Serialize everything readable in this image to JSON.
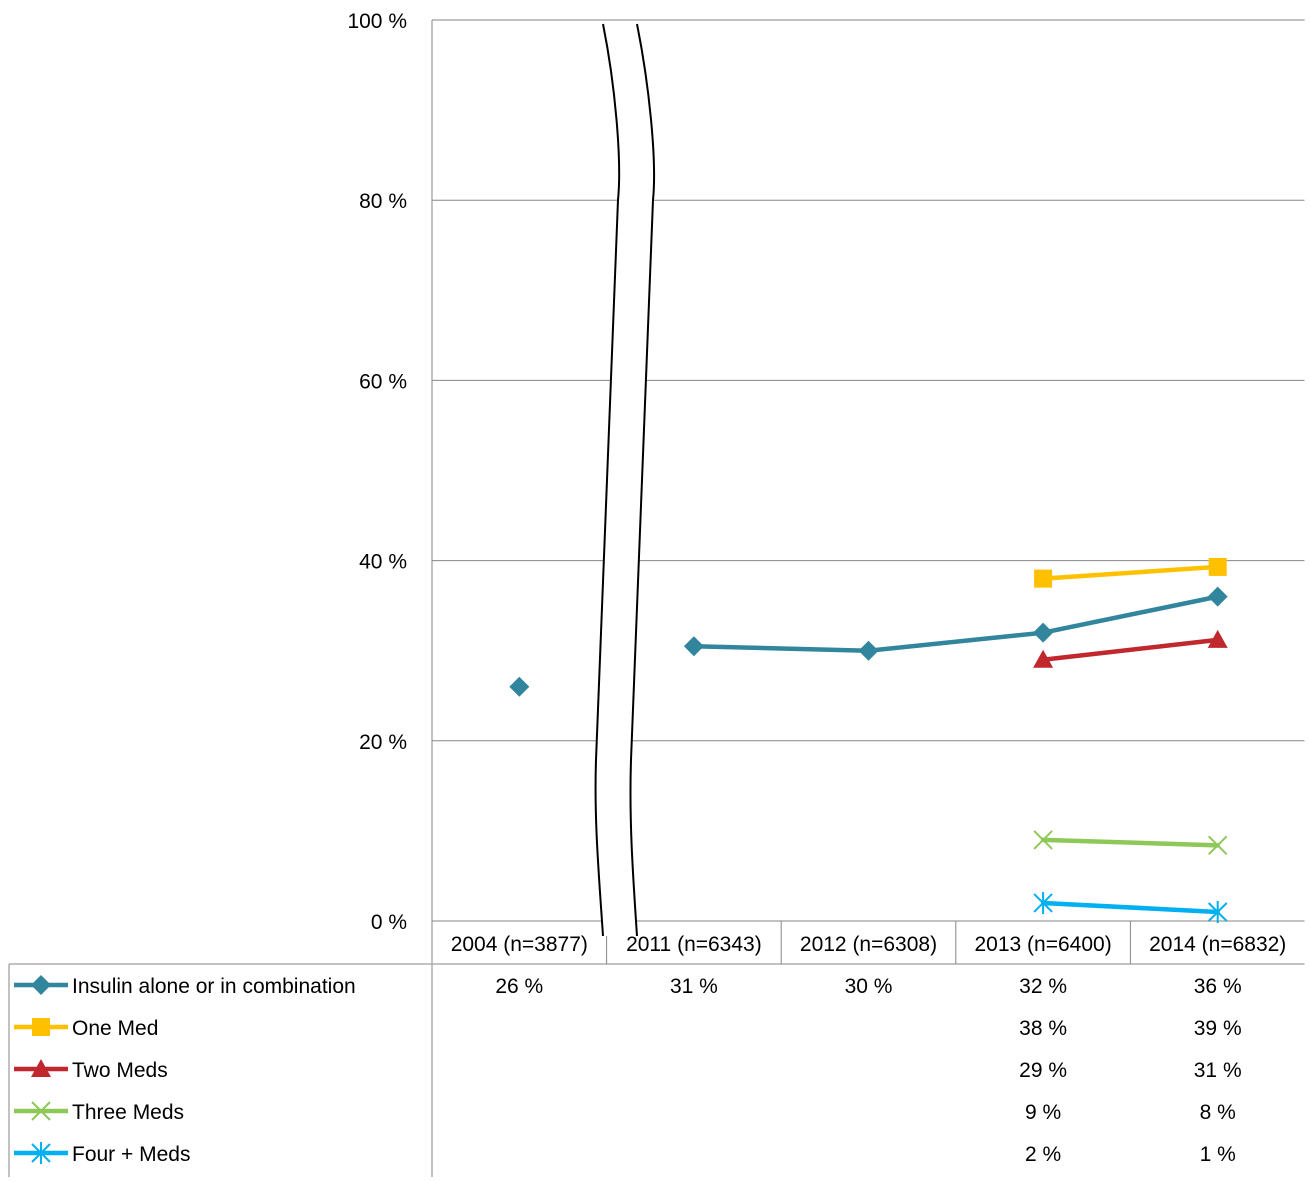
{
  "chart_data": {
    "type": "line",
    "ylim": [
      0,
      100
    ],
    "yticks": [
      0,
      20,
      40,
      60,
      80,
      100
    ],
    "ytick_labels": [
      "0 %",
      "20 %",
      "40 %",
      "60 %",
      "80 %",
      "100 %"
    ],
    "grid": true,
    "legend_placement": "data-table-below",
    "axis_break_after_category": "2004 (n=3877)",
    "categories": [
      "2004 (n=3877)",
      "2011 (n=6343)",
      "2012 (n=6308)",
      "2013 (n=6400)",
      "2014 (n=6832)"
    ],
    "series": [
      {
        "name": "Insulin alone or in combination",
        "color": "#31859c",
        "marker": "diamond",
        "values": [
          26,
          30.5,
          30,
          32,
          36
        ],
        "labels": [
          "26 %",
          "31 %",
          "30 %",
          "32 %",
          "36 %"
        ]
      },
      {
        "name": "One Med",
        "color": "#ffc000",
        "marker": "square",
        "values": [
          null,
          null,
          null,
          38,
          39.3
        ],
        "labels": [
          "",
          "",
          "",
          "38 %",
          "39 %"
        ]
      },
      {
        "name": "Two Meds",
        "color": "#c0282d",
        "marker": "triangle",
        "values": [
          null,
          null,
          null,
          29,
          31.2
        ],
        "labels": [
          "",
          "",
          "",
          "29 %",
          "31 %"
        ]
      },
      {
        "name": "Three Meds",
        "color": "#8dc858",
        "marker": "x",
        "values": [
          null,
          null,
          null,
          9,
          8.4
        ],
        "labels": [
          "",
          "",
          "",
          "9 %",
          "8 %"
        ]
      },
      {
        "name": "Four + Meds",
        "color": "#00b0f0",
        "marker": "asterisk",
        "values": [
          null,
          null,
          null,
          2,
          1
        ],
        "labels": [
          "",
          "",
          "",
          "2 %",
          "1 %"
        ]
      }
    ]
  }
}
